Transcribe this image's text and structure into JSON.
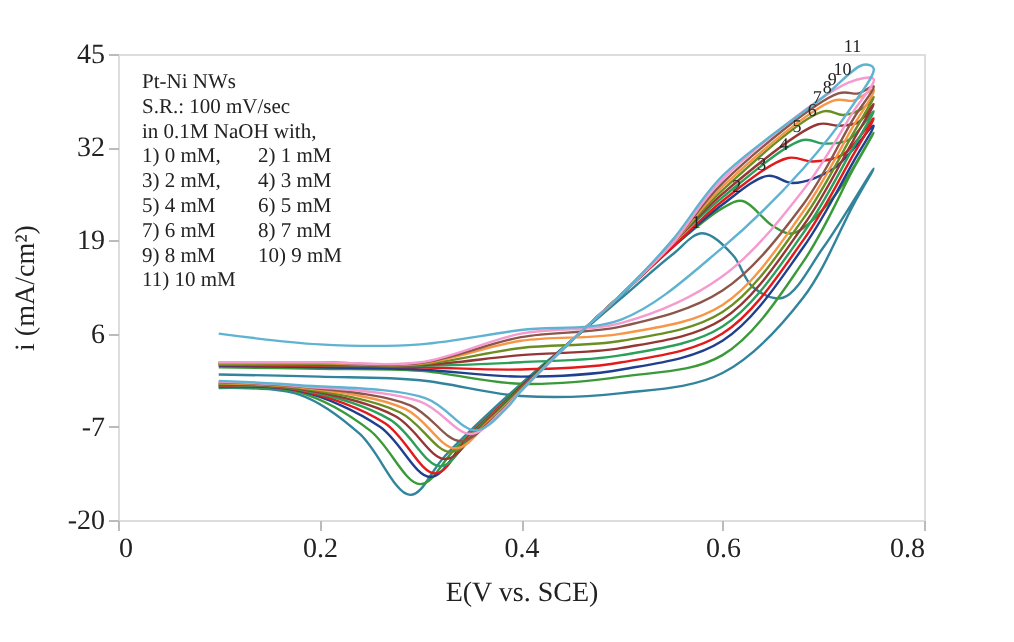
{
  "chart_data": {
    "type": "line",
    "xlabel": "E(V vs. SCE)",
    "ylabel": "i (mA/cm²)",
    "xlim": [
      0,
      0.8
    ],
    "xticks": [
      0,
      0.2,
      0.4,
      0.6,
      0.8
    ],
    "ylim": [
      -20,
      45
    ],
    "yticks": [
      -20,
      -7,
      6,
      19,
      32,
      45
    ],
    "grid": false,
    "legend": false,
    "marker": "none",
    "line_style": "solid",
    "annotations": [
      "Pt-Ni NWs",
      "S.R.: 100 mV/sec",
      "in 0.1M NaOH with,",
      "1) 0 mM,",
      "2) 1 mM",
      "3) 2 mM,",
      "4) 3 mM",
      "5) 4 mM",
      "6) 5 mM",
      "7) 6 mM",
      "8) 7 mM",
      "9) 8 mM",
      "10) 9 mM",
      "11) 10 mM",
      {
        "text": "1",
        "x": 0.58,
        "y": 19.6
      },
      {
        "text": "2",
        "x": 0.62,
        "y": 24.6
      },
      {
        "text": "3",
        "x": 0.645,
        "y": 27.7
      },
      {
        "text": "4",
        "x": 0.667,
        "y": 30.5
      },
      {
        "text": "5",
        "x": 0.68,
        "y": 33
      },
      {
        "text": "6",
        "x": 0.695,
        "y": 35.2
      },
      {
        "text": "7",
        "x": 0.7,
        "y": 37
      },
      {
        "text": "8",
        "x": 0.71,
        "y": 38.5
      },
      {
        "text": "9",
        "x": 0.715,
        "y": 39.5
      },
      {
        "text": "10",
        "x": 0.725,
        "y": 41
      },
      {
        "text": "11",
        "x": 0.735,
        "y": 44.2
      }
    ],
    "series": [
      {
        "color": "#31849b",
        "x": [
          0.1,
          0.18,
          0.24,
          0.29,
          0.325,
          0.4,
          0.45,
          0.5,
          0.55,
          0.58,
          0.61,
          0.63,
          0.66,
          0.7,
          0.75,
          0.73,
          0.68,
          0.6,
          0.5,
          0.4,
          0.3,
          0.2,
          0.1
        ],
        "values": [
          -1.6,
          -2.5,
          -8,
          -16.5,
          -11,
          -1,
          5,
          11,
          17,
          20,
          17,
          12.5,
          11,
          18,
          29,
          24,
          11,
          0.5,
          -2.3,
          -2.7,
          -0.5,
          0,
          0.3
        ]
      },
      {
        "color": "#3a9a3a",
        "x": [
          0.1,
          0.18,
          0.25,
          0.3,
          0.335,
          0.4,
          0.45,
          0.5,
          0.55,
          0.6,
          0.62,
          0.65,
          0.67,
          0.71,
          0.75,
          0.73,
          0.68,
          0.6,
          0.5,
          0.4,
          0.3,
          0.2,
          0.1
        ],
        "values": [
          -1.5,
          -2.2,
          -7.5,
          -15,
          -10,
          -1.3,
          5,
          11.5,
          18,
          23.5,
          24.5,
          21,
          20,
          25,
          34,
          29,
          16,
          3,
          0,
          -1,
          0.8,
          1.1,
          1.3
        ]
      },
      {
        "color": "#1f3f8f",
        "x": [
          0.1,
          0.18,
          0.26,
          0.31,
          0.345,
          0.4,
          0.45,
          0.5,
          0.55,
          0.6,
          0.645,
          0.67,
          0.71,
          0.75,
          0.73,
          0.68,
          0.6,
          0.5,
          0.4,
          0.3,
          0.2,
          0.1
        ],
        "values": [
          -1.4,
          -2,
          -7,
          -14,
          -9,
          -1.4,
          5,
          11.5,
          18,
          24,
          28,
          27,
          29,
          35,
          30,
          18,
          5,
          1,
          0,
          1,
          1.3,
          1.5
        ]
      },
      {
        "color": "#e31a1c",
        "x": [
          0.1,
          0.18,
          0.265,
          0.315,
          0.35,
          0.4,
          0.45,
          0.5,
          0.55,
          0.6,
          0.665,
          0.69,
          0.72,
          0.75,
          0.73,
          0.68,
          0.6,
          0.5,
          0.4,
          0.3,
          0.2,
          0.1
        ],
        "values": [
          -1.3,
          -1.9,
          -6.5,
          -13.5,
          -8,
          -1.5,
          5,
          11.5,
          18,
          24.5,
          30.5,
          30,
          31,
          36,
          31,
          19,
          6,
          2,
          1,
          1.3,
          1.5,
          1.6
        ]
      },
      {
        "color": "#2ca05a",
        "x": [
          0.1,
          0.18,
          0.27,
          0.32,
          0.355,
          0.4,
          0.45,
          0.5,
          0.55,
          0.6,
          0.68,
          0.7,
          0.725,
          0.75,
          0.73,
          0.68,
          0.6,
          0.5,
          0.4,
          0.3,
          0.2,
          0.1
        ],
        "values": [
          -1.2,
          -1.8,
          -6,
          -12.5,
          -7.5,
          -1.6,
          5,
          11.5,
          18.5,
          25,
          33,
          32.5,
          33,
          37,
          32,
          20,
          7,
          3,
          2,
          1.5,
          1.6,
          1.7
        ]
      },
      {
        "color": "#953735",
        "x": [
          0.1,
          0.18,
          0.275,
          0.325,
          0.36,
          0.4,
          0.45,
          0.5,
          0.55,
          0.6,
          0.695,
          0.715,
          0.735,
          0.75,
          0.73,
          0.68,
          0.6,
          0.5,
          0.4,
          0.3,
          0.2,
          0.1
        ],
        "values": [
          -1.1,
          -1.7,
          -5.5,
          -11.5,
          -7,
          -1.7,
          5,
          11.5,
          18.5,
          25.5,
          35.2,
          35,
          35.5,
          38,
          33,
          21,
          8,
          4,
          3,
          1.6,
          1.7,
          1.8
        ]
      },
      {
        "color": "#6b8e23",
        "x": [
          0.1,
          0.18,
          0.28,
          0.33,
          0.365,
          0.4,
          0.45,
          0.5,
          0.55,
          0.6,
          0.7,
          0.72,
          0.74,
          0.75,
          0.73,
          0.68,
          0.6,
          0.5,
          0.4,
          0.3,
          0.2,
          0.1
        ],
        "values": [
          -1,
          -1.6,
          -5,
          -10.5,
          -6.5,
          -1.8,
          5,
          11.5,
          18.5,
          26,
          37,
          36.5,
          37.5,
          39,
          34,
          22,
          9,
          5,
          4,
          1.7,
          1.8,
          1.8
        ]
      },
      {
        "color": "#f79646",
        "x": [
          0.1,
          0.18,
          0.285,
          0.335,
          0.37,
          0.4,
          0.45,
          0.5,
          0.55,
          0.6,
          0.71,
          0.73,
          0.75,
          0.73,
          0.68,
          0.6,
          0.5,
          0.4,
          0.3,
          0.2,
          0.1
        ],
        "values": [
          -0.9,
          -1.5,
          -4.5,
          -10,
          -6,
          -1.9,
          5,
          11.5,
          18.5,
          26.5,
          38.5,
          38.5,
          40,
          35,
          23,
          10,
          6,
          5,
          1.8,
          1.9,
          1.9
        ]
      },
      {
        "color": "#8c564b",
        "x": [
          0.1,
          0.18,
          0.29,
          0.34,
          0.375,
          0.4,
          0.45,
          0.5,
          0.55,
          0.6,
          0.715,
          0.735,
          0.75,
          0.73,
          0.68,
          0.6,
          0.5,
          0.4,
          0.3,
          0.2,
          0.1
        ],
        "values": [
          -0.8,
          -1.4,
          -4,
          -9,
          -5.5,
          -2,
          5,
          11.5,
          18.5,
          27,
          39.5,
          39.5,
          40.5,
          36,
          24,
          12,
          7,
          5.5,
          1.9,
          2,
          2
        ]
      },
      {
        "color": "#f59bd0",
        "x": [
          0.1,
          0.18,
          0.3,
          0.35,
          0.38,
          0.4,
          0.45,
          0.5,
          0.55,
          0.6,
          0.725,
          0.75,
          0.73,
          0.68,
          0.6,
          0.5,
          0.4,
          0.3,
          0.2,
          0.1
        ],
        "values": [
          -0.7,
          -1.3,
          -3.5,
          -8,
          -5,
          -2,
          5,
          11.5,
          18.5,
          27.5,
          41,
          41.5,
          37,
          26,
          14,
          7.5,
          6,
          2,
          2,
          2
        ]
      },
      {
        "color": "#5fb3d0",
        "x": [
          0.1,
          0.18,
          0.305,
          0.355,
          0.385,
          0.4,
          0.45,
          0.5,
          0.55,
          0.6,
          0.7,
          0.74,
          0.75,
          0.73,
          0.68,
          0.6,
          0.5,
          0.4,
          0.3,
          0.2,
          0.1
        ],
        "values": [
          -0.6,
          -1.2,
          -3,
          -7.5,
          -4.5,
          -2,
          5,
          11.5,
          19,
          28,
          39,
          43.5,
          43,
          38,
          29,
          18,
          8,
          6.5,
          4.5,
          4.5,
          6
        ]
      }
    ]
  }
}
